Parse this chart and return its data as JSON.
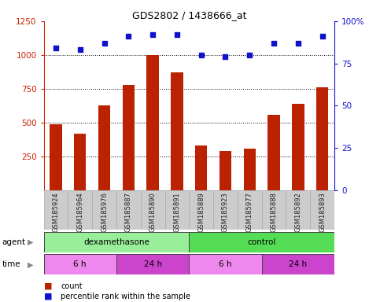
{
  "title": "GDS2802 / 1438666_at",
  "samples": [
    "GSM185924",
    "GSM185964",
    "GSM185976",
    "GSM185887",
    "GSM185890",
    "GSM185891",
    "GSM185889",
    "GSM185923",
    "GSM185977",
    "GSM185888",
    "GSM185892",
    "GSM185893"
  ],
  "counts": [
    490,
    420,
    630,
    780,
    1000,
    870,
    330,
    290,
    310,
    560,
    640,
    760
  ],
  "percentile_ranks": [
    84,
    83,
    87,
    91,
    92,
    92,
    80,
    79,
    80,
    87,
    87,
    91
  ],
  "bar_color": "#bb2200",
  "dot_color": "#1111cc",
  "ylim_left": [
    0,
    1250
  ],
  "yticks_left": [
    250,
    500,
    750,
    1000,
    1250
  ],
  "ylim_right": [
    0,
    100
  ],
  "yticks_right": [
    0,
    25,
    50,
    75,
    100
  ],
  "agent_groups": [
    {
      "label": "dexamethasone",
      "start": 0,
      "end": 6,
      "color": "#99ee99"
    },
    {
      "label": "control",
      "start": 6,
      "end": 12,
      "color": "#55dd55"
    }
  ],
  "time_groups": [
    {
      "label": "6 h",
      "start": 0,
      "end": 3,
      "color": "#ee88ee"
    },
    {
      "label": "24 h",
      "start": 3,
      "end": 6,
      "color": "#cc44cc"
    },
    {
      "label": "6 h",
      "start": 6,
      "end": 9,
      "color": "#ee88ee"
    },
    {
      "label": "24 h",
      "start": 9,
      "end": 12,
      "color": "#cc44cc"
    }
  ],
  "left_tick_color": "#cc2200",
  "right_tick_color": "#1111cc",
  "bar_width": 0.5,
  "cell_bg": "#cccccc",
  "cell_edge": "#aaaaaa"
}
